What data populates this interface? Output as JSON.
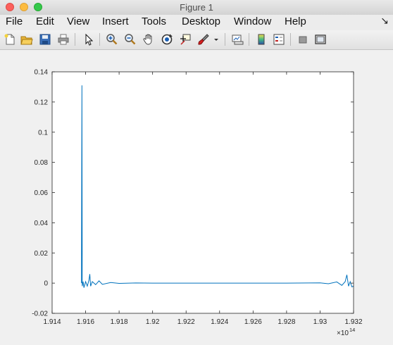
{
  "window": {
    "title": "Figure 1"
  },
  "menu": {
    "items": [
      "File",
      "Edit",
      "View",
      "Insert",
      "Tools",
      "Desktop",
      "Window",
      "Help"
    ]
  },
  "toolbar": {
    "buttons": [
      {
        "name": "new-figure-icon"
      },
      {
        "name": "open-file-icon"
      },
      {
        "name": "save-icon"
      },
      {
        "name": "print-icon"
      },
      {
        "name": "edit-plot-arrow-icon"
      },
      {
        "name": "zoom-in-icon"
      },
      {
        "name": "zoom-out-icon"
      },
      {
        "name": "pan-hand-icon"
      },
      {
        "name": "rotate-3d-icon"
      },
      {
        "name": "data-cursor-icon"
      },
      {
        "name": "brush-icon"
      },
      {
        "name": "brush-dropdown-icon"
      },
      {
        "name": "link-plot-icon"
      },
      {
        "name": "insert-colorbar-icon"
      },
      {
        "name": "insert-legend-icon"
      },
      {
        "name": "hide-plot-tools-icon"
      },
      {
        "name": "show-plot-tools-icon"
      }
    ]
  },
  "chart_data": {
    "type": "line",
    "title": "",
    "xlabel": "",
    "ylabel": "",
    "x_exponent_label": "×10",
    "x_exponent": "14",
    "xlim": [
      1.914,
      1.932
    ],
    "ylim": [
      -0.02,
      0.14
    ],
    "xticks": [
      "1.914",
      "1.916",
      "1.918",
      "1.92",
      "1.922",
      "1.924",
      "1.926",
      "1.928",
      "1.93",
      "1.932"
    ],
    "yticks": [
      "-0.02",
      "0",
      "0.02",
      "0.04",
      "0.06",
      "0.08",
      "0.1",
      "0.12",
      "0.14"
    ],
    "grid": false,
    "series": [
      {
        "color": "#0072bd",
        "x": [
          1.91575,
          1.91578,
          1.9158,
          1.91585,
          1.9159,
          1.916,
          1.9161,
          1.9162,
          1.91625,
          1.9163,
          1.9164,
          1.9166,
          1.9168,
          1.917,
          1.9175,
          1.918,
          1.919,
          1.92,
          1.922,
          1.924,
          1.926,
          1.928,
          1.93,
          1.9305,
          1.931,
          1.9313,
          1.9315,
          1.9316,
          1.9317,
          1.9318,
          1.9319,
          1.932
        ],
        "y": [
          0,
          0.131,
          -0.002,
          0.001,
          -0.003,
          0.001,
          -0.002,
          0.002,
          0.006,
          -0.002,
          0.001,
          -0.001,
          0.0015,
          -0.0008,
          0.0004,
          -0.0002,
          0.0001,
          0,
          0,
          0,
          0,
          0,
          0.0002,
          -0.0004,
          0.0008,
          -0.0015,
          0.001,
          0.0055,
          -0.002,
          0.001,
          -0.0025,
          -0.002
        ]
      }
    ]
  }
}
